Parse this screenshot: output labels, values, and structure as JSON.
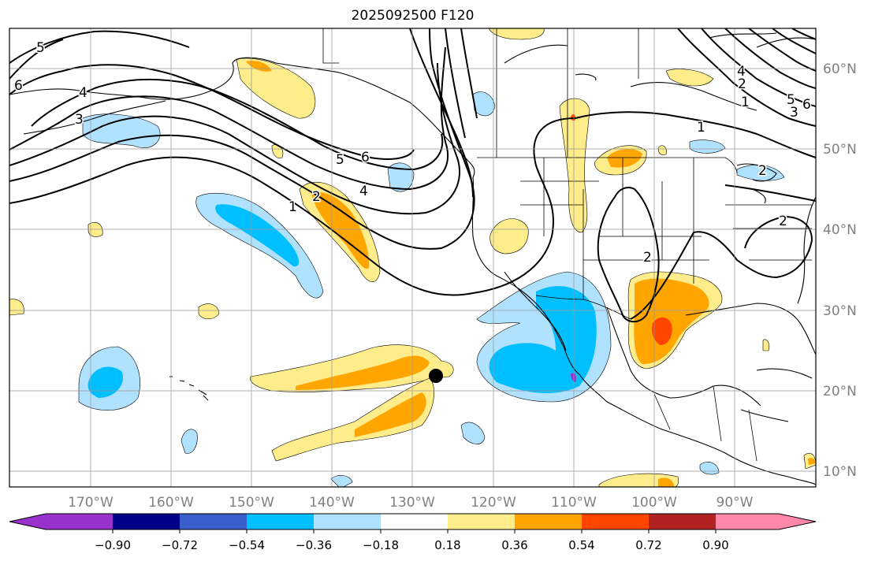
{
  "title": "2025092500 F120",
  "map": {
    "lon_labels": [
      "170°W",
      "160°W",
      "150°W",
      "140°W",
      "130°W",
      "120°W",
      "110°W",
      "100°W",
      "90°W"
    ],
    "lat_labels": [
      "60°N",
      "50°N",
      "40°N",
      "30°N",
      "20°N",
      "10°N"
    ],
    "contour_labels": [
      "5",
      "6",
      "4",
      "3",
      "1",
      "2",
      "6",
      "5",
      "4",
      "1",
      "2",
      "2",
      "1",
      "6",
      "5",
      "4",
      "2",
      "2",
      "3"
    ],
    "storm_marker": "filled-circle"
  },
  "colorbar": {
    "tick_labels": [
      "−0.90",
      "−0.72",
      "−0.54",
      "−0.36",
      "−0.18",
      "0.18",
      "0.36",
      "0.54",
      "0.72",
      "0.90"
    ],
    "colors": [
      "#9932cc",
      "#00008b",
      "#3a5fcd",
      "#00bfff",
      "#b0e2ff",
      "#ffffff",
      "#ffec8b",
      "#ffa500",
      "#ff4500",
      "#b22222",
      "#ff88aa"
    ]
  }
}
